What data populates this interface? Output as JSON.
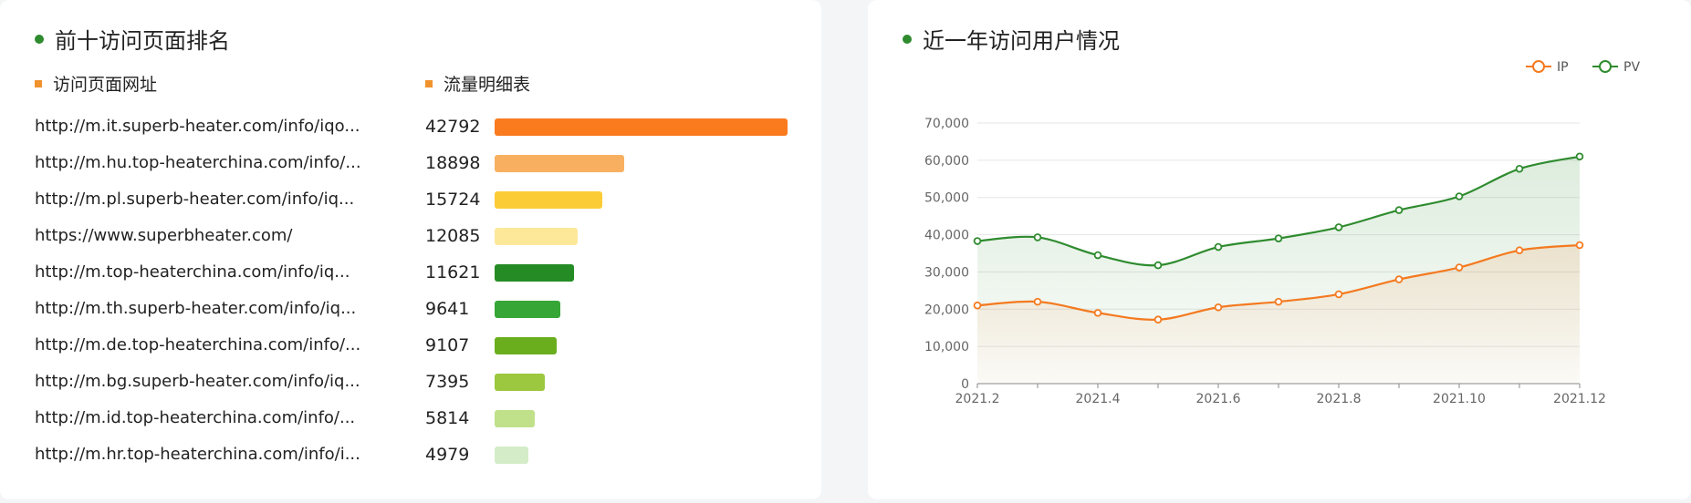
{
  "left": {
    "title": "前十访问页面排名",
    "col_url": "访问页面网址",
    "col_traffic": "流量明细表",
    "rows": [
      {
        "url": "http://m.it.superb-heater.com/info/iqo...",
        "value": 42792,
        "color": "#fa7a1e"
      },
      {
        "url": "http://m.hu.top-heaterchina.com/info/...",
        "value": 18898,
        "color": "#f8b060"
      },
      {
        "url": "http://m.pl.superb-heater.com/info/iq...",
        "value": 15724,
        "color": "#fccc36"
      },
      {
        "url": "https://www.superbheater.com/",
        "value": 12085,
        "color": "#fde89a"
      },
      {
        "url": "http://m.top-heaterchina.com/info/iq...",
        "value": 11621,
        "color": "#258c25"
      },
      {
        "url": "http://m.th.superb-heater.com/info/iq...",
        "value": 9641,
        "color": "#36a636"
      },
      {
        "url": "http://m.de.top-heaterchina.com/info/...",
        "value": 9107,
        "color": "#6aae1e"
      },
      {
        "url": "http://m.bg.superb-heater.com/info/iq...",
        "value": 7395,
        "color": "#9bc83e"
      },
      {
        "url": "http://m.id.top-heaterchina.com/info/...",
        "value": 5814,
        "color": "#c0e08a"
      },
      {
        "url": "http://m.hr.top-heaterchina.com/info/i...",
        "value": 4979,
        "color": "#d4ecc8"
      }
    ]
  },
  "right": {
    "title": "近一年访问用户情况"
  },
  "colors": {
    "title_dot": "#2e8b2e",
    "ip": "#f47a20",
    "pv": "#2e8b2e"
  },
  "chart_data": [
    {
      "type": "bar",
      "title": "前十访问页面排名",
      "categories": [
        "http://m.it.superb-heater.com/info/iqo...",
        "http://m.hu.top-heaterchina.com/info/...",
        "http://m.pl.superb-heater.com/info/iq...",
        "https://www.superbheater.com/",
        "http://m.top-heaterchina.com/info/iq...",
        "http://m.th.superb-heater.com/info/iq...",
        "http://m.de.top-heaterchina.com/info/...",
        "http://m.bg.superb-heater.com/info/iq...",
        "http://m.id.top-heaterchina.com/info/...",
        "http://m.hr.top-heaterchina.com/info/i..."
      ],
      "values": [
        42792,
        18898,
        15724,
        12085,
        11621,
        9641,
        9107,
        7395,
        5814,
        4979
      ]
    },
    {
      "type": "line",
      "title": "近一年访问用户情况",
      "x": [
        "2021.2",
        "2021.3",
        "2021.4",
        "2021.5",
        "2021.6",
        "2021.7",
        "2021.8",
        "2021.9",
        "2021.10",
        "2021.11",
        "2021.12"
      ],
      "x_tick_labels": [
        "2021.2",
        "2021.4",
        "2021.6",
        "2021.8",
        "2021.10",
        "2021.12"
      ],
      "y_tick_labels": [
        "0",
        "10,000",
        "20,000",
        "30,000",
        "40,000",
        "50,000",
        "60,000",
        "70,000"
      ],
      "ylim": [
        0,
        70000
      ],
      "grid": true,
      "legend": "top-right",
      "series": [
        {
          "name": "IP",
          "values": [
            21000,
            22000,
            19000,
            17200,
            20500,
            22000,
            24000,
            28000,
            31200,
            35800,
            37200
          ]
        },
        {
          "name": "PV",
          "values": [
            38300,
            39300,
            34500,
            31800,
            36700,
            39000,
            42000,
            46600,
            50300,
            57700,
            61000
          ]
        }
      ]
    }
  ]
}
